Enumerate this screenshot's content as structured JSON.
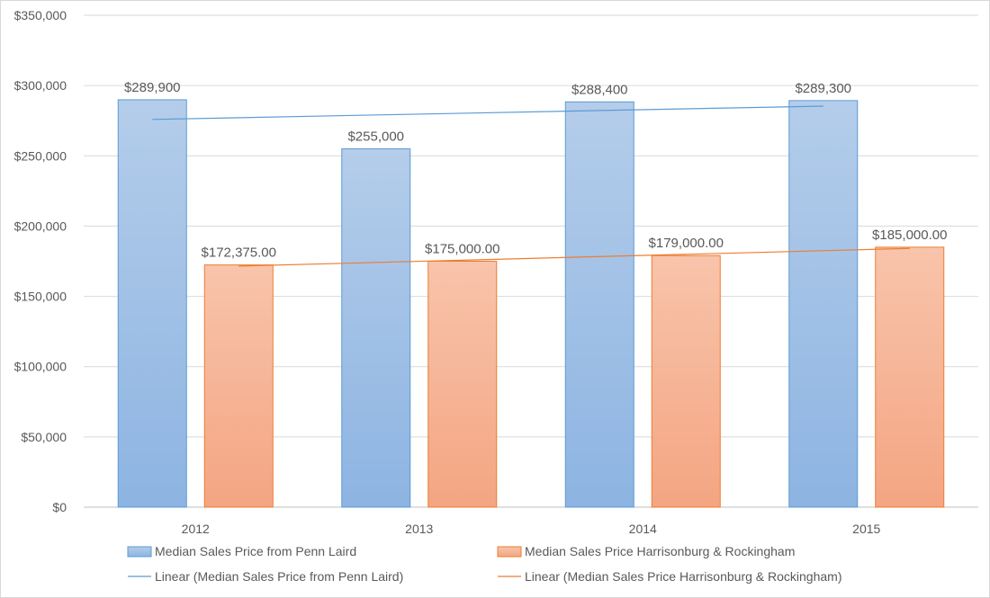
{
  "chart_data": {
    "type": "bar",
    "categories": [
      "2012",
      "2013",
      "2014",
      "2015"
    ],
    "series": [
      {
        "name": "Median Sales Price from Penn Laird",
        "values": [
          289900,
          255000,
          288400,
          289300
        ],
        "labels": [
          "$289,900",
          "$255,000",
          "$288,400",
          "$289,300"
        ],
        "color_top": "#b4cdea",
        "color_bottom": "#8db4e2",
        "border": "#5b9bd5"
      },
      {
        "name": "Median Sales Price Harrisonburg & Rockingham",
        "values": [
          172375,
          175000,
          179000,
          185000
        ],
        "labels": [
          "$172,375.00",
          "$175,000.00",
          "$179,000.00",
          "$185,000.00"
        ],
        "color_top": "#f8c4ab",
        "color_bottom": "#f4a582",
        "border": "#ed7d31"
      }
    ],
    "trendlines": [
      {
        "name": "Linear (Median Sales Price from Penn Laird)",
        "series_index": 0,
        "color": "#5b9bd5"
      },
      {
        "name": "Linear (Median Sales Price Harrisonburg & Rockingham)",
        "series_index": 1,
        "color": "#ed7d31"
      }
    ],
    "ylim": [
      0,
      350000
    ],
    "yticks": [
      {
        "value": 0,
        "label": "$0"
      },
      {
        "value": 50000,
        "label": "$50,000"
      },
      {
        "value": 100000,
        "label": "$100,000"
      },
      {
        "value": 150000,
        "label": "$150,000"
      },
      {
        "value": 200000,
        "label": "$200,000"
      },
      {
        "value": 250000,
        "label": "$250,000"
      },
      {
        "value": 300000,
        "label": "$300,000"
      },
      {
        "value": 350000,
        "label": "$350,000"
      }
    ],
    "grid": true,
    "legend_position": "bottom",
    "title": "",
    "xlabel": "",
    "ylabel": ""
  }
}
